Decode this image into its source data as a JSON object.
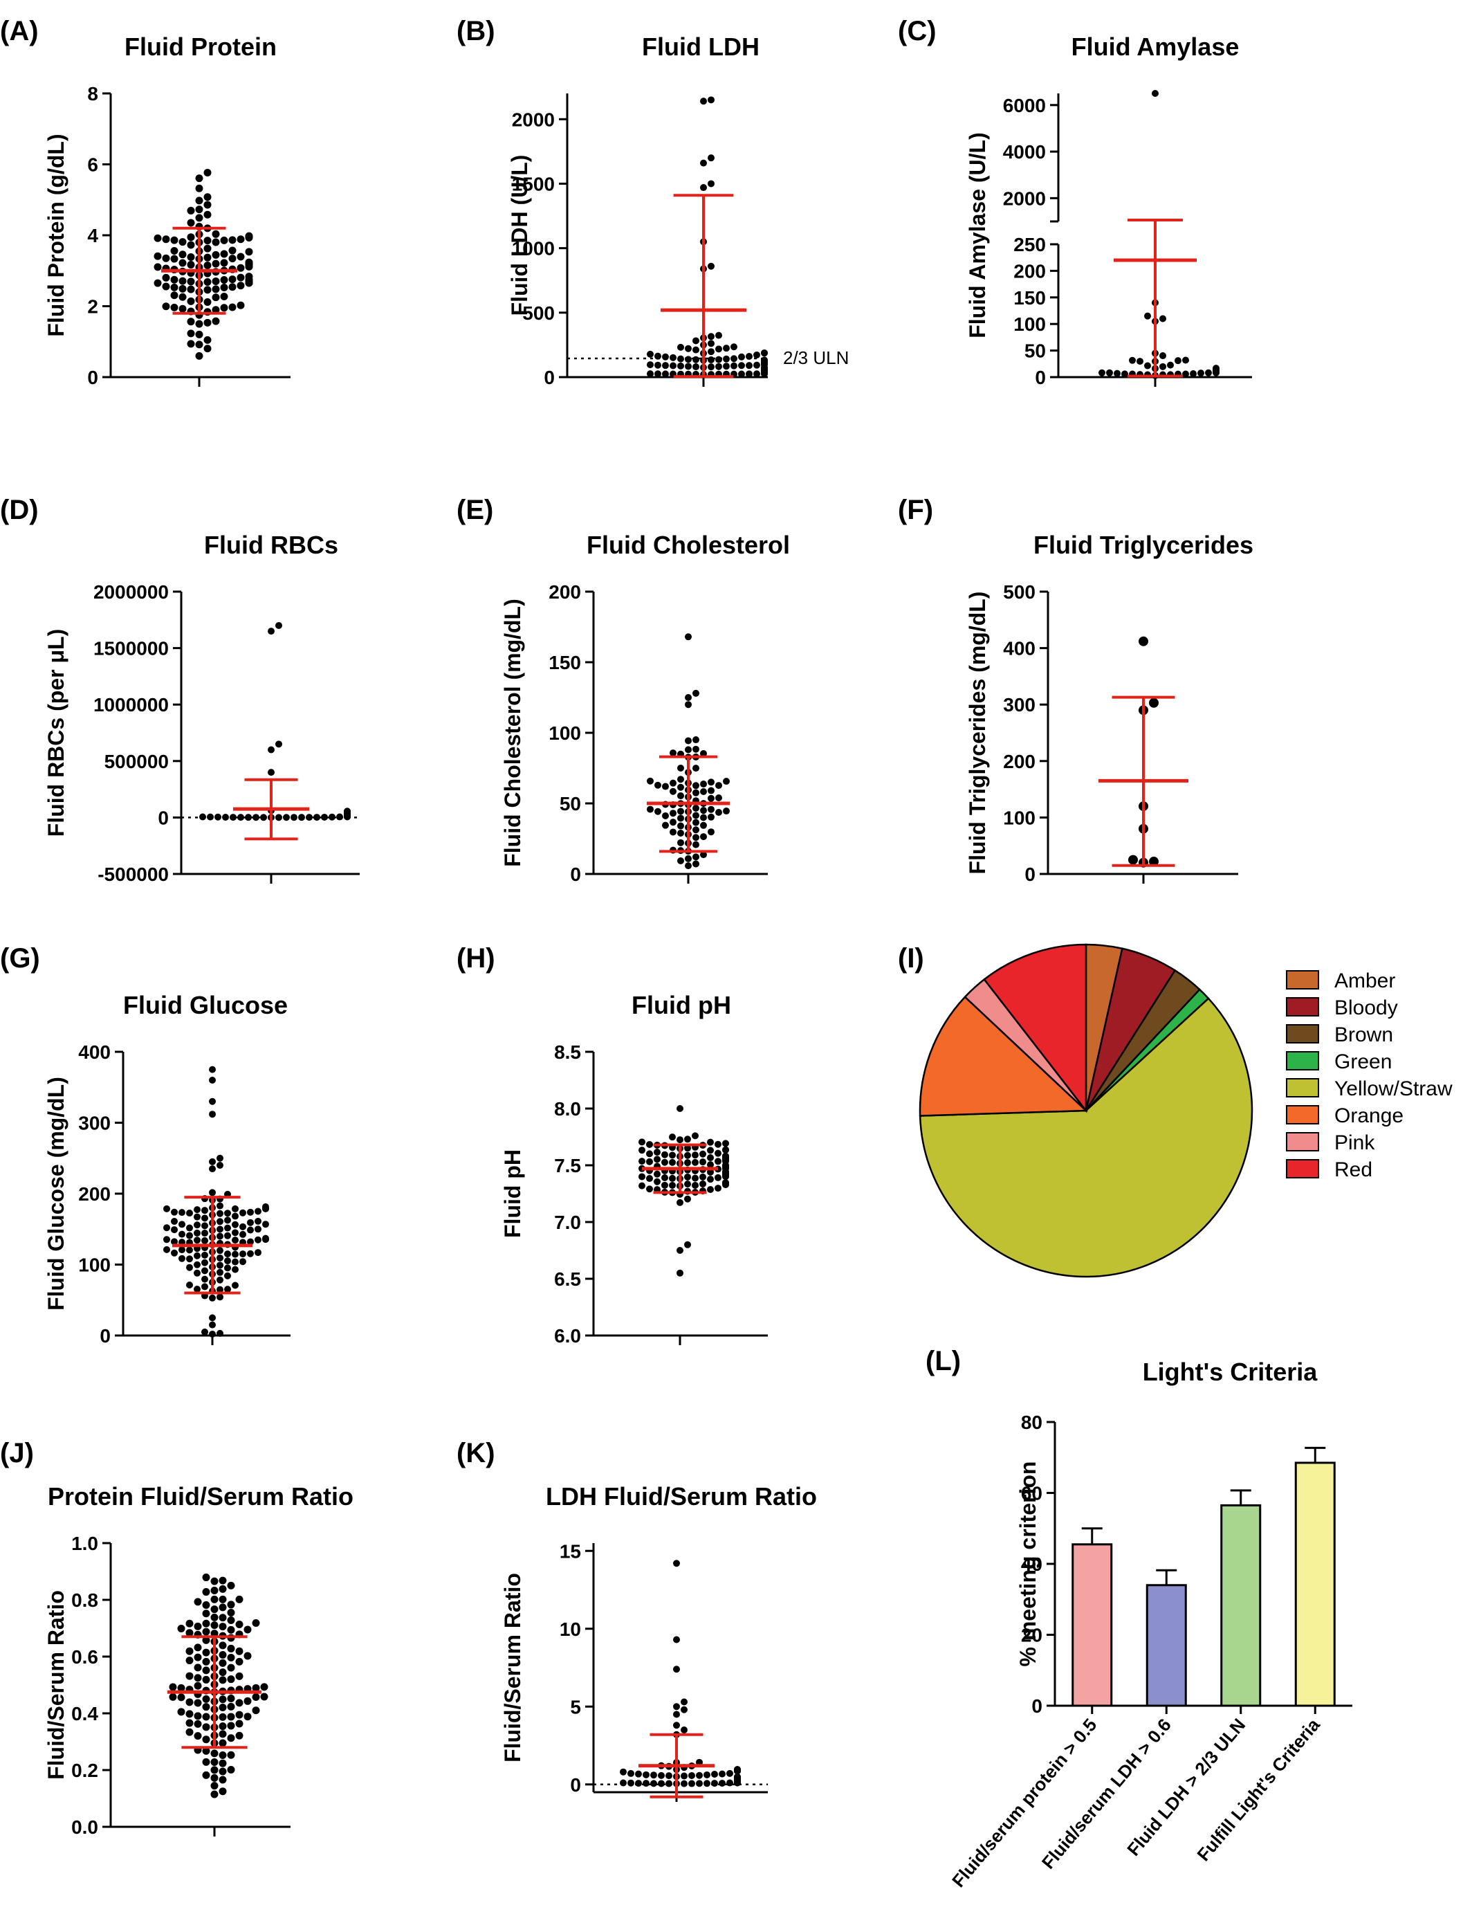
{
  "chart_data": [
    {
      "id": "A",
      "letter": "(A)",
      "type": "scatter",
      "title": "Fluid Protein",
      "xlabel": "",
      "ylabel": "Fluid Protein (g/dL)",
      "ylim": [
        0,
        8
      ],
      "yticks": [
        0,
        2,
        4,
        6,
        8
      ],
      "ytick_labels": [
        "0",
        "2",
        "4",
        "6",
        "8"
      ],
      "mean": 3.0,
      "sd_low": 1.8,
      "sd_high": 4.2,
      "dot_count": 130,
      "points_summary": "distribution 0.5 to 5.8 g/dL"
    },
    {
      "id": "B",
      "letter": "(B)",
      "type": "scatter",
      "title": "Fluid LDH",
      "xlabel": "",
      "ylabel": "Fluid LDH (U/L)",
      "ylim": [
        0,
        2200
      ],
      "yticks": [
        0,
        500,
        1000,
        1500,
        2000
      ],
      "ytick_labels": [
        "0",
        "500",
        "1000",
        "1500",
        "2000"
      ],
      "mean": 520,
      "sd_low": 5,
      "sd_high": 1410,
      "reference_line": {
        "value": 145,
        "label": "2/3 ULN"
      },
      "outliers": [
        2150,
        2140,
        1700,
        1660,
        1500,
        1470,
        1050,
        860,
        840
      ]
    },
    {
      "id": "C",
      "letter": "(C)",
      "type": "scatter",
      "title": "Fluid Amylase",
      "xlabel": "",
      "ylabel": "Fluid Amylase (U/L)",
      "broken_axis": true,
      "ylim_lower": [
        0,
        250
      ],
      "yticks_lower": [
        0,
        50,
        100,
        150,
        200,
        250
      ],
      "ytick_labels_lower": [
        "0",
        "50",
        "100",
        "150",
        "200",
        "250"
      ],
      "ylim_upper": [
        1000,
        6500
      ],
      "yticks_upper": [
        2000,
        4000,
        6000
      ],
      "ytick_labels_upper": [
        "2000",
        "4000",
        "6000"
      ],
      "mean": 220,
      "sd_low": 2,
      "sd_high": 1400,
      "outliers": [
        6500,
        140,
        115,
        110,
        105
      ]
    },
    {
      "id": "D",
      "letter": "(D)",
      "type": "scatter",
      "title": "Fluid RBCs",
      "xlabel": "",
      "ylabel": "Fluid RBCs (per μL)",
      "ylim": [
        -500000,
        2000000
      ],
      "yticks": [
        -500000,
        0,
        500000,
        1000000,
        1500000,
        2000000
      ],
      "ytick_labels": [
        "-500000",
        "0",
        "500000",
        "1000000",
        "1500000",
        "2000000"
      ],
      "mean": 75000,
      "sd_low": -190000,
      "sd_high": 335000,
      "reference_line": {
        "value": 0,
        "label": ""
      },
      "outliers": [
        1700000,
        1650000,
        650000,
        600000,
        400000
      ]
    },
    {
      "id": "E",
      "letter": "(E)",
      "type": "scatter",
      "title": "Fluid Cholesterol",
      "xlabel": "",
      "ylabel": "Fluid Cholesterol (mg/dL)",
      "ylim": [
        0,
        200
      ],
      "yticks": [
        0,
        50,
        100,
        150,
        200
      ],
      "ytick_labels": [
        "0",
        "50",
        "100",
        "150",
        "200"
      ],
      "mean": 50,
      "sd_low": 16,
      "sd_high": 83,
      "outliers": [
        168,
        128,
        125,
        120
      ]
    },
    {
      "id": "F",
      "letter": "(F)",
      "type": "scatter",
      "title": "Fluid Triglycerides",
      "xlabel": "",
      "ylabel": "Fluid Triglycerides (mg/dL)",
      "ylim": [
        0,
        500
      ],
      "yticks": [
        0,
        100,
        200,
        300,
        400,
        500
      ],
      "ytick_labels": [
        "0",
        "100",
        "200",
        "300",
        "400",
        "500"
      ],
      "mean": 165,
      "sd_low": 15,
      "sd_high": 313,
      "points": [
        412,
        303,
        290,
        120,
        80,
        25,
        22,
        20
      ]
    },
    {
      "id": "G",
      "letter": "(G)",
      "type": "scatter",
      "title": "Fluid Glucose",
      "xlabel": "",
      "ylabel": "Fluid Glucose (mg/dL)",
      "ylim": [
        0,
        400
      ],
      "yticks": [
        0,
        100,
        200,
        300,
        400
      ],
      "ytick_labels": [
        "0",
        "100",
        "200",
        "300",
        "400"
      ],
      "mean": 127,
      "sd_low": 60,
      "sd_high": 195,
      "outliers": [
        375,
        360,
        330,
        312,
        250,
        245,
        240,
        235,
        25,
        15,
        5,
        3,
        2
      ]
    },
    {
      "id": "H",
      "letter": "(H)",
      "type": "scatter",
      "title": "Fluid pH",
      "xlabel": "",
      "ylabel": "Fluid pH",
      "ylim": [
        6.0,
        8.5
      ],
      "yticks": [
        6.0,
        6.5,
        7.0,
        7.5,
        8.0,
        8.5
      ],
      "ytick_labels": [
        "6.0",
        "6.5",
        "7.0",
        "7.5",
        "8.0",
        "8.5"
      ],
      "mean": 7.47,
      "sd_low": 7.26,
      "sd_high": 7.68,
      "outliers": [
        8.0,
        6.8,
        6.75,
        6.55
      ]
    },
    {
      "id": "I",
      "letter": "(I)",
      "type": "pie",
      "title": "",
      "slices": [
        {
          "label": "Amber",
          "value": 3.5,
          "color": "#c8682c"
        },
        {
          "label": "Bloody",
          "value": 5.5,
          "color": "#a01c24"
        },
        {
          "label": "Brown",
          "value": 3.0,
          "color": "#6e4a1e"
        },
        {
          "label": "Green",
          "value": 1.2,
          "color": "#2cb34a"
        },
        {
          "label": "Yellow/Straw",
          "value": 61.3,
          "color": "#bfc032"
        },
        {
          "label": "Orange",
          "value": 12.5,
          "color": "#f2692a"
        },
        {
          "label": "Pink",
          "value": 2.5,
          "color": "#f08c8c"
        },
        {
          "label": "Red",
          "value": 10.5,
          "color": "#e8252a"
        }
      ],
      "legend_placement": "right"
    },
    {
      "id": "J",
      "letter": "(J)",
      "type": "scatter",
      "title": "Protein Fluid/Serum Ratio",
      "xlabel": "",
      "ylabel": "Fluid/Serum Ratio",
      "ylim": [
        0,
        1.0
      ],
      "yticks": [
        0.0,
        0.2,
        0.4,
        0.6,
        0.8,
        1.0
      ],
      "ytick_labels": [
        "0.0",
        "0.2",
        "0.4",
        "0.6",
        "0.8",
        "1.0"
      ],
      "mean": 0.475,
      "sd_low": 0.28,
      "sd_high": 0.67,
      "dot_count": 140
    },
    {
      "id": "K",
      "letter": "(K)",
      "type": "scatter",
      "title": "LDH Fluid/Serum Ratio",
      "xlabel": "",
      "ylabel": "Fluid/Serum Ratio",
      "ylim": [
        -0.5,
        15.5
      ],
      "yticks": [
        0,
        5,
        10,
        15
      ],
      "ytick_labels": [
        "0",
        "5",
        "10",
        "15"
      ],
      "mean": 1.2,
      "sd_low": -0.8,
      "sd_high": 3.2,
      "reference_line": {
        "value": 0,
        "label": ""
      },
      "outliers": [
        14.2,
        9.3,
        7.4,
        5.3,
        5.0,
        4.8,
        4.5,
        3.8,
        3.5,
        3.2
      ]
    },
    {
      "id": "L",
      "letter": "(L)",
      "type": "bar",
      "title": "Light's Criteria",
      "xlabel": "",
      "ylabel": "% meeting criterion",
      "ylim": [
        0,
        80
      ],
      "yticks": [
        0,
        20,
        40,
        60,
        80
      ],
      "ytick_labels": [
        "0",
        "20",
        "40",
        "60",
        "80"
      ],
      "categories": [
        "Fluid/serum protein > 0.5",
        "Fluid/serum LDH > 0.6",
        "Fluid LDH > 2/3 ULN",
        "Fulfill Light's Criteria"
      ],
      "values": [
        45.5,
        34,
        56.5,
        68.5
      ],
      "errors": [
        4.5,
        4.2,
        4.2,
        4.2
      ],
      "colors": [
        "#f4a3a3",
        "#8b8fcb",
        "#a9d68e",
        "#f6f29a"
      ]
    }
  ]
}
